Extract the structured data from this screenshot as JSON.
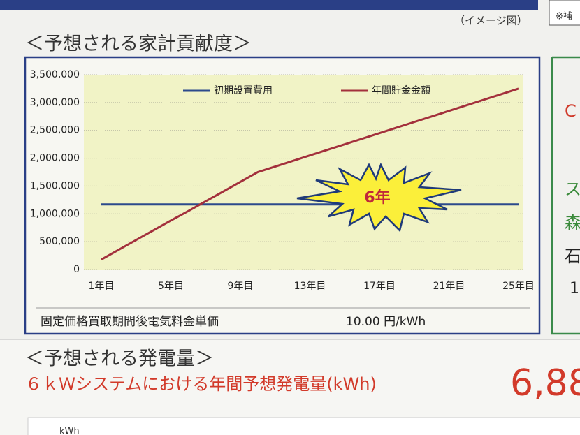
{
  "page": {
    "image_note": "（イメージ図）",
    "side_note": "※補",
    "section1_title": "＜予想される家計貢献度＞",
    "footer_label": "固定価格買取期間後電気料金単価",
    "footer_value": "10.00 円/kWh",
    "section2_title": "＜予想される発電量＞",
    "section2_subtitle": "６ｋＷシステムにおける年間予想発電量(kWh)",
    "section2_value": "6,88",
    "right_fragments": [
      "C",
      "ス",
      "森",
      "石",
      "1"
    ],
    "bottom_fragment": "kWh"
  },
  "chart_data": {
    "type": "line",
    "categories": [
      "1年目",
      null,
      null,
      null,
      "5年目",
      null,
      null,
      null,
      "9年目",
      null,
      null,
      null,
      "13年目",
      null,
      null,
      null,
      "17年目",
      null,
      null,
      null,
      "21年目",
      null,
      null,
      null,
      "25年目"
    ],
    "series": [
      {
        "name": "初期設置費用",
        "color": "#2c4a8c",
        "values": [
          1170000,
          1170000,
          1170000,
          1170000,
          1170000,
          1170000,
          1170000,
          1170000,
          1170000,
          1170000,
          1170000,
          1170000,
          1170000,
          1170000,
          1170000,
          1170000,
          1170000,
          1170000,
          1170000,
          1170000,
          1170000,
          1170000,
          1170000,
          1170000,
          1170000
        ]
      },
      {
        "name": "年間貯金金額",
        "color": "#a3303c",
        "values": [
          180000,
          355000,
          530000,
          705000,
          880000,
          1050000,
          1225000,
          1400000,
          1575000,
          1750000,
          1850000,
          1950000,
          2050000,
          2150000,
          2250000,
          2350000,
          2450000,
          2550000,
          2650000,
          2750000,
          2850000,
          2950000,
          3050000,
          3150000,
          3250000
        ]
      }
    ],
    "ylim": [
      0,
      3500000
    ],
    "yticks": [
      0,
      {
        "value": 500000,
        "label": "500,000"
      },
      {
        "value": 1000000,
        "label": "1,000,000"
      },
      {
        "value": 1500000,
        "label": "1,500,000"
      },
      {
        "value": 2000000,
        "label": "2,000,000"
      },
      {
        "value": 2500000,
        "label": "2,500,000"
      },
      {
        "value": 3000000,
        "label": "3,000,000"
      },
      {
        "value": 3500000,
        "label": "3,500,000"
      }
    ],
    "grid": true,
    "annotation": "6年"
  }
}
